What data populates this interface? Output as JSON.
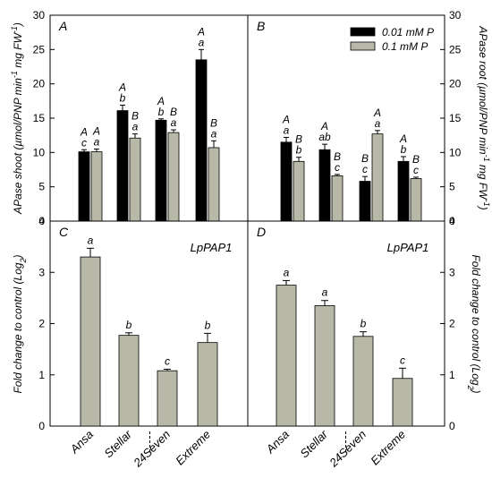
{
  "chart_data": [
    {
      "panel": "A",
      "type": "bar",
      "ylabel": "APase shoot (µmol/PNP min⁻¹ mg FW⁻¹)",
      "ylim": [
        0,
        30
      ],
      "yticks": [
        0,
        5,
        10,
        15,
        20,
        25,
        30
      ],
      "categories": [
        "Ansa",
        "Stellar",
        "24Seven",
        "Extreme"
      ],
      "series": [
        {
          "name": "0.01 mM P",
          "color": "#000000",
          "values": [
            10.1,
            16.1,
            14.7,
            23.5
          ],
          "errors": [
            0.3,
            0.8,
            0.2,
            1.5
          ],
          "letters_upper": [
            "A",
            "A",
            "A",
            "A"
          ],
          "letters_lower": [
            "c",
            "b",
            "b",
            "a"
          ]
        },
        {
          "name": "0.1 mM P",
          "color": "#b8b8a8",
          "values": [
            10.1,
            12.1,
            12.9,
            10.7
          ],
          "errors": [
            0.4,
            0.6,
            0.4,
            1.0
          ],
          "letters_upper": [
            "A",
            "B",
            "B",
            "B"
          ],
          "letters_lower": [
            "a",
            "a",
            "a",
            "a"
          ]
        }
      ]
    },
    {
      "panel": "B",
      "type": "bar",
      "ylabel": "APase root (µmol/PNP min⁻¹ mg FW⁻¹)",
      "ylim": [
        0,
        30
      ],
      "yticks": [
        0,
        5,
        10,
        15,
        20,
        25,
        30
      ],
      "categories": [
        "Ansa",
        "Stellar",
        "24Seven",
        "Extreme"
      ],
      "legend_position": "top-right",
      "series": [
        {
          "name": "0.01 mM P",
          "color": "#000000",
          "values": [
            11.5,
            10.4,
            5.8,
            8.7
          ],
          "errors": [
            0.7,
            0.8,
            0.7,
            0.7
          ],
          "letters_upper": [
            "A",
            "A",
            "B",
            "A"
          ],
          "letters_lower": [
            "a",
            "ab",
            "c",
            "b"
          ]
        },
        {
          "name": "0.1 mM P",
          "color": "#b8b8a8",
          "values": [
            8.7,
            6.6,
            12.7,
            6.2
          ],
          "errors": [
            0.6,
            0.2,
            0.5,
            0.2
          ],
          "letters_upper": [
            "B",
            "B",
            "A",
            "B"
          ],
          "letters_lower": [
            "b",
            "c",
            "a",
            "c"
          ]
        }
      ]
    },
    {
      "panel": "C",
      "type": "bar",
      "gene": "LpPAP1",
      "ylabel": "Fold change to control (Log2)",
      "ylim": [
        0,
        4
      ],
      "yticks": [
        0,
        1,
        2,
        3,
        4
      ],
      "categories": [
        "Ansa",
        "Stellar",
        "24Seven",
        "Extreme"
      ],
      "series": [
        {
          "color": "#b8b8a8",
          "values": [
            3.3,
            1.77,
            1.08,
            1.63
          ],
          "errors": [
            0.17,
            0.05,
            0.03,
            0.18
          ],
          "letters": [
            "a",
            "b",
            "c",
            "b"
          ]
        }
      ]
    },
    {
      "panel": "D",
      "type": "bar",
      "gene": "LpPAP1",
      "ylabel": "Fold change to control (Log2)",
      "ylim": [
        0,
        4
      ],
      "yticks": [
        0,
        1,
        2,
        3,
        4
      ],
      "categories": [
        "Ansa",
        "Stellar",
        "24Seven",
        "Extreme"
      ],
      "series": [
        {
          "color": "#b8b8a8",
          "values": [
            2.75,
            2.35,
            1.75,
            0.93
          ],
          "errors": [
            0.09,
            0.1,
            0.09,
            0.2
          ],
          "letters": [
            "a",
            "a",
            "b",
            "c"
          ]
        }
      ]
    }
  ]
}
